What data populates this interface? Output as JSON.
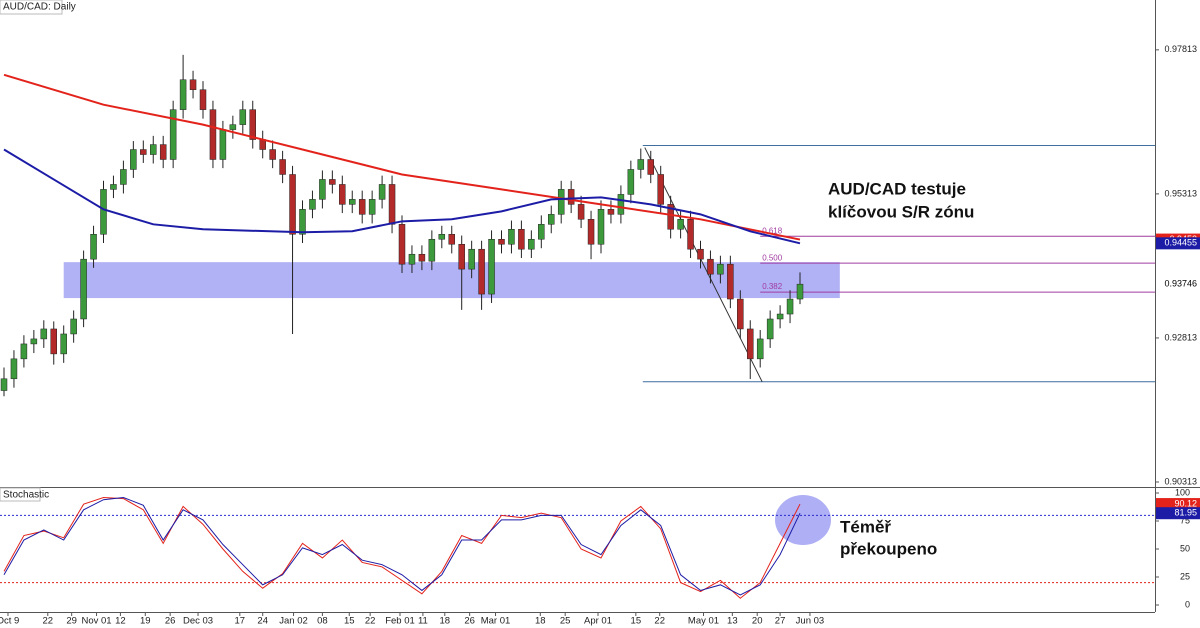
{
  "chart_data": [
    {
      "type": "candlestick",
      "title": "AUD/CAD: Daily",
      "up_color": "#3c9a3c",
      "down_color": "#b22a2a",
      "ylim": [
        0.90226,
        0.98678
      ],
      "yticks": [
        0.90313,
        0.92813,
        0.95313,
        0.97813
      ],
      "xticks": [
        {
          "value": 0.4,
          "label": "Oct 9"
        },
        {
          "value": 4.4,
          "label": "22"
        },
        {
          "value": 6.8,
          "label": "29"
        },
        {
          "value": 9.3,
          "label": "Nov 01"
        },
        {
          "value": 11.7,
          "label": "12"
        },
        {
          "value": 14.2,
          "label": "19"
        },
        {
          "value": 16.7,
          "label": "26"
        },
        {
          "value": 19.5,
          "label": "Dec 03"
        },
        {
          "value": 23.7,
          "label": "17"
        },
        {
          "value": 26,
          "label": "24"
        },
        {
          "value": 29.1,
          "label": "Jan 02"
        },
        {
          "value": 32,
          "label": "08"
        },
        {
          "value": 34.7,
          "label": "15"
        },
        {
          "value": 36.8,
          "label": "22"
        },
        {
          "value": 39.8,
          "label": "Feb 01"
        },
        {
          "value": 42.1,
          "label": "11"
        },
        {
          "value": 44.3,
          "label": "18"
        },
        {
          "value": 46.8,
          "label": "26"
        },
        {
          "value": 49.4,
          "label": "Mar 01"
        },
        {
          "value": 53.9,
          "label": "18"
        },
        {
          "value": 56.4,
          "label": "25"
        },
        {
          "value": 59.7,
          "label": "Apr 01"
        },
        {
          "value": 63.5,
          "label": "15"
        },
        {
          "value": 65.9,
          "label": "22"
        },
        {
          "value": 70.3,
          "label": "May 01"
        },
        {
          "value": 73.2,
          "label": "13"
        },
        {
          "value": 75.7,
          "label": "20"
        },
        {
          "value": 78,
          "label": "27"
        },
        {
          "value": 81,
          "label": "Jun 03"
        }
      ],
      "candles": [
        [
          0.919,
          0.923,
          0.918,
          0.92104
        ],
        [
          0.92104,
          0.926,
          0.9195,
          0.9245
        ],
        [
          0.9245,
          0.9286,
          0.923,
          0.92709
        ],
        [
          0.92709,
          0.9295,
          0.9255,
          0.92796
        ],
        [
          0.92796,
          0.9312,
          0.9264,
          0.92969
        ],
        [
          0.92969,
          0.931,
          0.9235,
          0.92536
        ],
        [
          0.92536,
          0.9303,
          0.9238,
          0.92882
        ],
        [
          0.92882,
          0.9329,
          0.9273,
          0.93142
        ],
        [
          0.93142,
          0.9433,
          0.93,
          0.9418
        ],
        [
          0.9418,
          0.9476,
          0.9403,
          0.94612
        ],
        [
          0.94612,
          0.9554,
          0.9446,
          0.95391
        ],
        [
          0.95391,
          0.9563,
          0.9524,
          0.95477
        ],
        [
          0.95477,
          0.9589,
          0.9532,
          0.95737
        ],
        [
          0.95737,
          0.9623,
          0.9559,
          0.96083
        ],
        [
          0.96083,
          0.9624,
          0.9585,
          0.95996
        ],
        [
          0.95996,
          0.9632,
          0.9584,
          0.96169
        ],
        [
          0.96169,
          0.9632,
          0.9576,
          0.9591
        ],
        [
          0.9591,
          0.9693,
          0.9576,
          0.96775
        ],
        [
          0.96775,
          0.97726,
          0.9662,
          0.97294
        ],
        [
          0.97294,
          0.9745,
          0.9697,
          0.97121
        ],
        [
          0.97121,
          0.9727,
          0.9662,
          0.96775
        ],
        [
          0.96775,
          0.9693,
          0.9576,
          0.9591
        ],
        [
          0.9591,
          0.9658,
          0.9576,
          0.96429
        ],
        [
          0.96429,
          0.9667,
          0.9627,
          0.96515
        ],
        [
          0.96515,
          0.9693,
          0.9636,
          0.96775
        ],
        [
          0.96775,
          0.9693,
          0.961,
          0.96256
        ],
        [
          0.96256,
          0.9641,
          0.9593,
          0.96083
        ],
        [
          0.96083,
          0.9624,
          0.9576,
          0.9591
        ],
        [
          0.9591,
          0.9606,
          0.955,
          0.9565
        ],
        [
          0.9565,
          0.958,
          0.92882,
          0.94612
        ],
        [
          0.94612,
          0.952,
          0.9446,
          0.95045
        ],
        [
          0.95045,
          0.9537,
          0.9489,
          0.95218
        ],
        [
          0.95218,
          0.9572,
          0.9506,
          0.95564
        ],
        [
          0.95564,
          0.9572,
          0.9532,
          0.95477
        ],
        [
          0.95477,
          0.9563,
          0.9498,
          0.95131
        ],
        [
          0.95131,
          0.9537,
          0.9498,
          0.95218
        ],
        [
          0.95218,
          0.9537,
          0.948,
          0.94958
        ],
        [
          0.94958,
          0.9537,
          0.948,
          0.95218
        ],
        [
          0.95218,
          0.9563,
          0.9506,
          0.95477
        ],
        [
          0.95477,
          0.9563,
          0.9463,
          0.94785
        ],
        [
          0.94785,
          0.9494,
          0.9394,
          0.94093
        ],
        [
          0.94093,
          0.9442,
          0.9394,
          0.94266
        ],
        [
          0.94266,
          0.9442,
          0.9399,
          0.94145
        ],
        [
          0.94145,
          0.9468,
          0.9399,
          0.94526
        ],
        [
          0.94526,
          0.9476,
          0.9437,
          0.94612
        ],
        [
          0.94612,
          0.9476,
          0.9428,
          0.94439
        ],
        [
          0.94439,
          0.9459,
          0.933,
          0.94007
        ],
        [
          0.94007,
          0.945,
          0.9385,
          0.94353
        ],
        [
          0.94353,
          0.945,
          0.933,
          0.93574
        ],
        [
          0.93574,
          0.9468,
          0.9342,
          0.94526
        ],
        [
          0.94526,
          0.9468,
          0.9428,
          0.94439
        ],
        [
          0.94439,
          0.9485,
          0.9428,
          0.94699
        ],
        [
          0.94699,
          0.9485,
          0.942,
          0.94353
        ],
        [
          0.94353,
          0.9468,
          0.942,
          0.94526
        ],
        [
          0.94526,
          0.9494,
          0.9437,
          0.94785
        ],
        [
          0.94785,
          0.9511,
          0.9463,
          0.94958
        ],
        [
          0.94958,
          0.9554,
          0.948,
          0.95391
        ],
        [
          0.95391,
          0.9554,
          0.9498,
          0.95131
        ],
        [
          0.95131,
          0.9528,
          0.9472,
          0.94872
        ],
        [
          0.94872,
          0.9502,
          0.9418,
          0.94439
        ],
        [
          0.94439,
          0.952,
          0.9428,
          0.95045
        ],
        [
          0.95045,
          0.952,
          0.948,
          0.94958
        ],
        [
          0.94958,
          0.9546,
          0.948,
          0.95304
        ],
        [
          0.95304,
          0.9589,
          0.9515,
          0.95737
        ],
        [
          0.95737,
          0.961,
          0.9558,
          0.9591
        ],
        [
          0.9591,
          0.9606,
          0.955,
          0.9565
        ],
        [
          0.9565,
          0.958,
          0.9498,
          0.95131
        ],
        [
          0.95131,
          0.9528,
          0.9454,
          0.94699
        ],
        [
          0.94699,
          0.9502,
          0.9454,
          0.94872
        ],
        [
          0.94872,
          0.9502,
          0.942,
          0.94353
        ],
        [
          0.94353,
          0.945,
          0.9402,
          0.9418
        ],
        [
          0.9418,
          0.9433,
          0.9376,
          0.9392
        ],
        [
          0.9392,
          0.9424,
          0.9376,
          0.94093
        ],
        [
          0.94093,
          0.9424,
          0.9333,
          0.93488
        ],
        [
          0.93488,
          0.9364,
          0.9281,
          0.92969
        ],
        [
          0.92969,
          0.9312,
          0.921,
          0.9245
        ],
        [
          0.9245,
          0.9295,
          0.923,
          0.92796
        ],
        [
          0.92796,
          0.9329,
          0.9264,
          0.93142
        ],
        [
          0.93142,
          0.9338,
          0.9298,
          0.93228
        ],
        [
          0.93228,
          0.9364,
          0.9307,
          0.93488
        ],
        [
          0.93488,
          0.9395,
          0.934,
          0.93746
        ]
      ],
      "overlays": [
        {
          "color": "#e3231b",
          "x": [
            0,
            10,
            20,
            30,
            40,
            50,
            60,
            70,
            80
          ],
          "values": [
            0.9738,
            0.96861,
            0.96515,
            0.96083,
            0.9565,
            0.95391,
            0.95131,
            0.94872,
            0.9452
          ]
        },
        {
          "color": "#1c1ca6",
          "x": [
            0,
            5,
            10,
            15,
            20,
            30,
            35,
            40,
            45,
            50,
            55,
            60,
            65,
            70,
            75,
            80
          ],
          "values": [
            0.96083,
            0.95564,
            0.95045,
            0.94785,
            0.94699,
            0.94647,
            0.94664,
            0.94837,
            0.94872,
            0.9501,
            0.95218,
            0.95253,
            0.95131,
            0.94958,
            0.94664,
            0.94455
          ]
        }
      ],
      "last_value_tags": true,
      "zone": {
        "x": [
          6,
          84
        ],
        "y": [
          0.93505,
          0.94128
        ],
        "color": "#a3a3f3"
      },
      "fib": {
        "x": [
          76,
          115.7
        ],
        "color": "#a03ca0",
        "levels": [
          {
            "value": 0.94578,
            "label": "0.618"
          },
          {
            "value": 0.94111,
            "label": "0.500"
          },
          {
            "value": 0.93609,
            "label": "0.382"
          }
        ]
      },
      "hlines": {
        "x": [
          64.2,
          115.7
        ],
        "values": [
          0.96152,
          0.92052
        ],
        "color": "#3f6f9f"
      },
      "trendline": {
        "x": [
          64.4,
          76.2
        ],
        "values": [
          0.96117,
          0.92052
        ],
        "color": "#333333"
      },
      "annotation": [
        "AUD/CAD testuje",
        "klíčovou S/R zónu"
      ]
    },
    {
      "type": "line",
      "title": "Stochastic",
      "ylim": [
        -6.25,
        104.46
      ],
      "yticks": [
        0,
        25,
        50,
        75,
        100
      ],
      "x": [
        0,
        2,
        4,
        6,
        8,
        10,
        12,
        14,
        16,
        18,
        20,
        22,
        24,
        26,
        28,
        30,
        32,
        34,
        36,
        38,
        40,
        42,
        44,
        46,
        48,
        50,
        52,
        54,
        56,
        58,
        60,
        62,
        64,
        66,
        68,
        70,
        72,
        74,
        76,
        78,
        80
      ],
      "series": [
        {
          "color": "#e3231b",
          "values": [
            30,
            62,
            66,
            60,
            90,
            96,
            95,
            85,
            55,
            88,
            72,
            50,
            30,
            15,
            28,
            55,
            42,
            58,
            38,
            34,
            22,
            10,
            30,
            62,
            55,
            80,
            78,
            82,
            78,
            50,
            42,
            75,
            88,
            68,
            20,
            12,
            22,
            6,
            20,
            55,
            90.12
          ]
        },
        {
          "color": "#1c1ca6",
          "values": [
            27,
            58,
            67,
            58,
            85,
            94,
            96,
            89,
            58,
            85,
            76,
            54,
            36,
            18,
            27,
            51,
            45,
            54,
            40,
            36,
            27,
            13,
            27,
            58,
            58,
            76,
            76,
            80,
            80,
            54,
            45,
            71,
            85,
            71,
            27,
            13,
            18,
            9,
            18,
            45,
            81.95
          ]
        }
      ],
      "levels": [
        {
          "value": 80,
          "color": "#2b2bd0"
        },
        {
          "value": 20,
          "color": "#e3231b"
        }
      ],
      "last_value_tags": true,
      "annotation": [
        "Téměř",
        "překoupeno"
      ]
    }
  ]
}
